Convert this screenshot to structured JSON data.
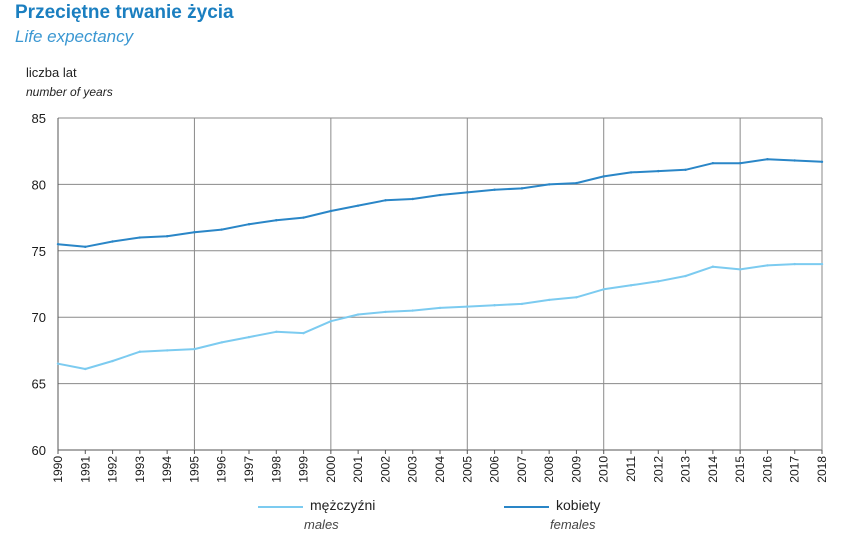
{
  "chart_data": {
    "type": "line",
    "title": "Przeciętne trwanie życia",
    "subtitle": "Life expectancy",
    "ylabel": "liczba lat",
    "ylabel_en": "number of years",
    "xlabel": "",
    "ylim": [
      60,
      85
    ],
    "yticks": [
      60,
      65,
      70,
      75,
      80,
      85
    ],
    "grid": true,
    "legend_position": "bottom",
    "categories": [
      "1990",
      "1991",
      "1992",
      "1993",
      "1994",
      "1995",
      "1996",
      "1997",
      "1998",
      "1999",
      "2000",
      "2001",
      "2002",
      "2003",
      "2004",
      "2005",
      "2006",
      "2007",
      "2008",
      "2009",
      "2010",
      "2011",
      "2012",
      "2013",
      "2014",
      "2015",
      "2016",
      "2017",
      "2018"
    ],
    "series": [
      {
        "name": "mężczyźni",
        "name_en": "males",
        "color": "#7ccbf0",
        "values": [
          66.5,
          66.1,
          66.7,
          67.4,
          67.5,
          67.6,
          68.1,
          68.5,
          68.9,
          68.8,
          69.7,
          70.2,
          70.4,
          70.5,
          70.7,
          70.8,
          70.9,
          71.0,
          71.3,
          71.5,
          72.1,
          72.4,
          72.7,
          73.1,
          73.8,
          73.6,
          73.9,
          74.0,
          74.0
        ]
      },
      {
        "name": "kobiety",
        "name_en": "females",
        "color": "#2a86c7",
        "values": [
          75.5,
          75.3,
          75.7,
          76.0,
          76.1,
          76.4,
          76.6,
          77.0,
          77.3,
          77.5,
          78.0,
          78.4,
          78.8,
          78.9,
          79.2,
          79.4,
          79.6,
          79.7,
          80.0,
          80.1,
          80.6,
          80.9,
          81.0,
          81.1,
          81.6,
          81.6,
          81.9,
          81.8,
          81.7
        ]
      }
    ]
  }
}
